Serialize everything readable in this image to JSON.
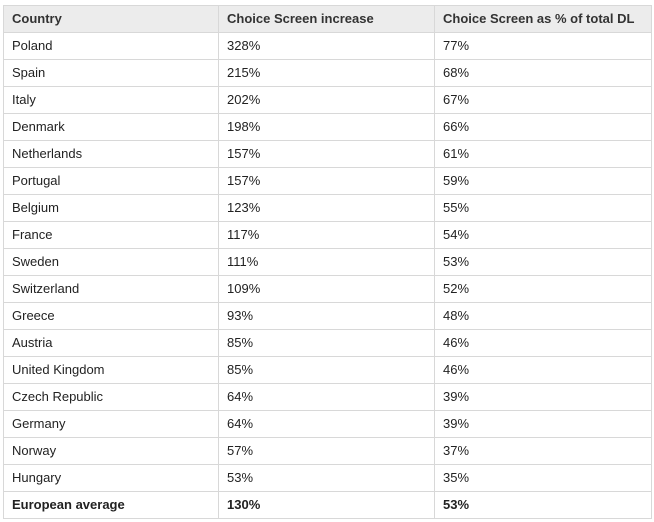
{
  "table": {
    "headers": [
      "Country",
      "Choice Screen increase",
      "Choice Screen as % of total DL"
    ],
    "rows": [
      [
        "Poland",
        "328%",
        "77%"
      ],
      [
        "Spain",
        "215%",
        "68%"
      ],
      [
        "Italy",
        "202%",
        "67%"
      ],
      [
        "Denmark",
        "198%",
        "66%"
      ],
      [
        "Netherlands",
        "157%",
        "61%"
      ],
      [
        "Portugal",
        "157%",
        "59%"
      ],
      [
        "Belgium",
        "123%",
        "55%"
      ],
      [
        "France",
        "117%",
        "54%"
      ],
      [
        "Sweden",
        "111%",
        "53%"
      ],
      [
        "Switzerland",
        "109%",
        "52%"
      ],
      [
        "Greece",
        "93%",
        "48%"
      ],
      [
        "Austria",
        "85%",
        "46%"
      ],
      [
        "United Kingdom",
        "85%",
        "46%"
      ],
      [
        "Czech Republic",
        "64%",
        "39%"
      ],
      [
        "Germany",
        "64%",
        "39%"
      ],
      [
        "Norway",
        "57%",
        "37%"
      ],
      [
        "Hungary",
        "53%",
        "35%"
      ]
    ],
    "average": [
      "European average",
      "130%",
      "53%"
    ]
  }
}
